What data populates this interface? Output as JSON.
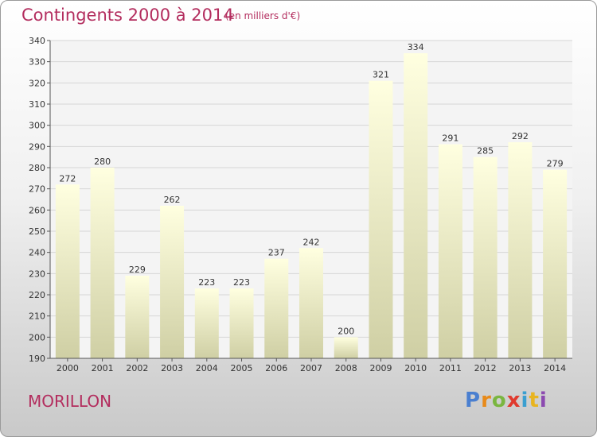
{
  "header": {
    "title": "Contingents 2000 à 2014",
    "subtitle": "(en milliers d'€)"
  },
  "footer": {
    "commune": "MORILLON",
    "logo_text": "Proxiti"
  },
  "colors": {
    "title": "#b32d5e",
    "bar_top": "#ffffe0",
    "bar_bottom": "#cfcfa4",
    "grid": "#d6d6d6"
  },
  "chart_data": {
    "type": "bar",
    "title": "Contingents 2000 à 2014",
    "subtitle": "(en milliers d'€)",
    "xlabel": "",
    "ylabel": "",
    "categories": [
      "2000",
      "2001",
      "2002",
      "2003",
      "2004",
      "2005",
      "2006",
      "2007",
      "2008",
      "2009",
      "2010",
      "2011",
      "2012",
      "2013",
      "2014"
    ],
    "values": [
      272,
      280,
      229,
      262,
      223,
      223,
      237,
      242,
      200,
      321,
      334,
      291,
      285,
      292,
      279
    ],
    "ylim": [
      190,
      340
    ],
    "yticks": [
      190,
      200,
      210,
      220,
      230,
      240,
      250,
      260,
      270,
      280,
      290,
      300,
      310,
      320,
      330,
      340
    ],
    "grid": true,
    "legend": "none"
  }
}
